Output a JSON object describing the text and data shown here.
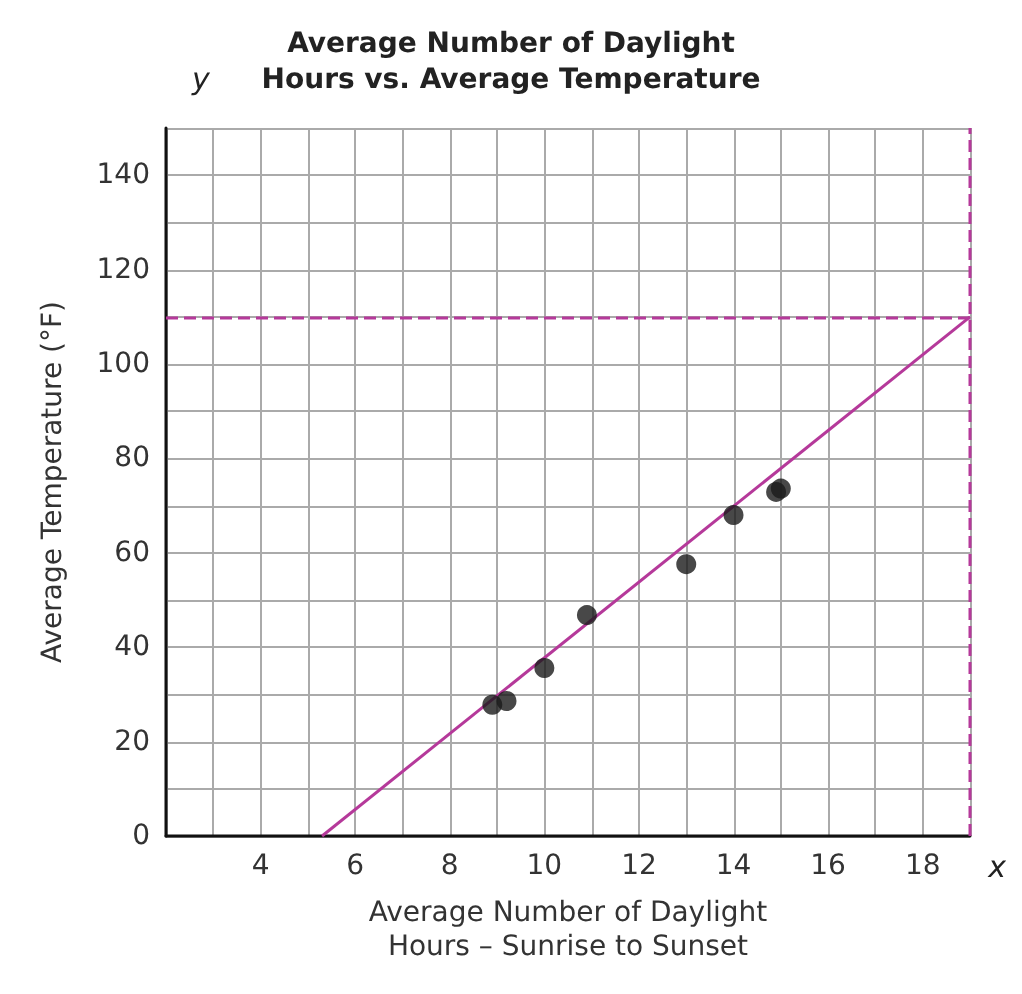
{
  "chart_data": {
    "type": "scatter",
    "title": "Average Number of Daylight\nHours vs. Average Temperature",
    "xlabel": "Average Number of Daylight\nHours – Sunrise to Sunset",
    "ylabel": "Average Temperature (°F)",
    "annotations": [
      "x",
      "y"
    ],
    "x": [
      8.9,
      9.2,
      10,
      10.9,
      13,
      14,
      14.9,
      15
    ],
    "series": [
      {
        "color": "#1a1a1a",
        "values": [
          27.8,
          28.6,
          35.6,
          46.8,
          57.6,
          68,
          72.9,
          73.6
        ]
      },
      {
        "type": "line",
        "color": "#b5399a",
        "marker": "none",
        "x": [
          5.3,
          19
        ],
        "values": [
          0,
          110
        ]
      }
    ],
    "xlim": [
      2,
      19
    ],
    "xticks": [
      {
        "value": 2,
        "label": null
      },
      {
        "value": 3,
        "label": null
      },
      4,
      {
        "value": 5,
        "label": null
      },
      6,
      {
        "value": 7,
        "label": null
      },
      8,
      {
        "value": 9,
        "label": null
      },
      10,
      {
        "value": 11,
        "label": null
      },
      12,
      {
        "value": 13,
        "label": null
      },
      14,
      {
        "value": 15,
        "label": null
      },
      16,
      {
        "value": 17,
        "label": null
      },
      18,
      {
        "value": 19,
        "label": null
      }
    ],
    "ylim": [
      0,
      150
    ],
    "yticks": [
      0,
      {
        "value": 10,
        "label": null
      },
      20,
      {
        "value": 30,
        "label": null
      },
      40,
      {
        "value": 50,
        "label": null
      },
      60,
      {
        "value": 70,
        "label": null
      },
      80,
      {
        "value": 90,
        "label": null
      },
      100,
      {
        "value": 110,
        "label": null
      },
      120,
      {
        "value": 130,
        "label": null
      },
      140,
      {
        "value": 150,
        "label": null
      }
    ],
    "ref_lines": [
      {
        "axis": "y",
        "value": 110,
        "color": "#b5399a",
        "line_style": "dashed"
      },
      {
        "axis": "x",
        "value": 19,
        "color": "#b5399a",
        "line_style": "dashed"
      }
    ],
    "grid": true,
    "marker": "circle"
  }
}
